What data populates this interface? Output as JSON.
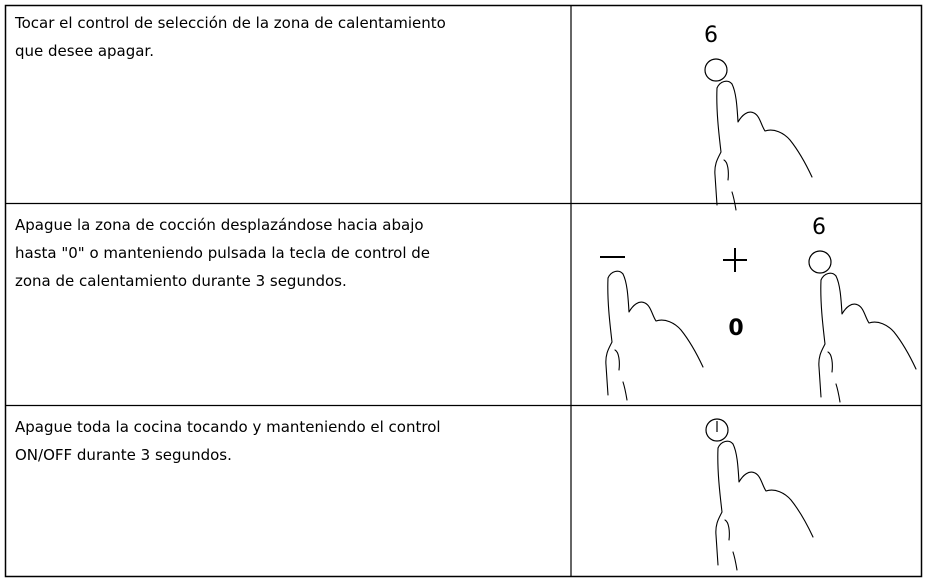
{
  "table": {
    "rows": [
      {
        "text": [
          "Tocar el control de selección de la zona de calentamiento",
          "que desee apagar."
        ],
        "display": "6"
      },
      {
        "text": [
          "Apague la zona de cocción desplazándose hacia abajo",
          "hasta \"0\" o manteniendo pulsada la tecla de control de",
          "zona de calentamiento durante 3 segundos."
        ],
        "display": "6",
        "level": "0"
      },
      {
        "text": [
          "Apague toda la cocina tocando y manteniendo el control",
          "ON/OFF durante 3 segundos."
        ]
      }
    ]
  }
}
